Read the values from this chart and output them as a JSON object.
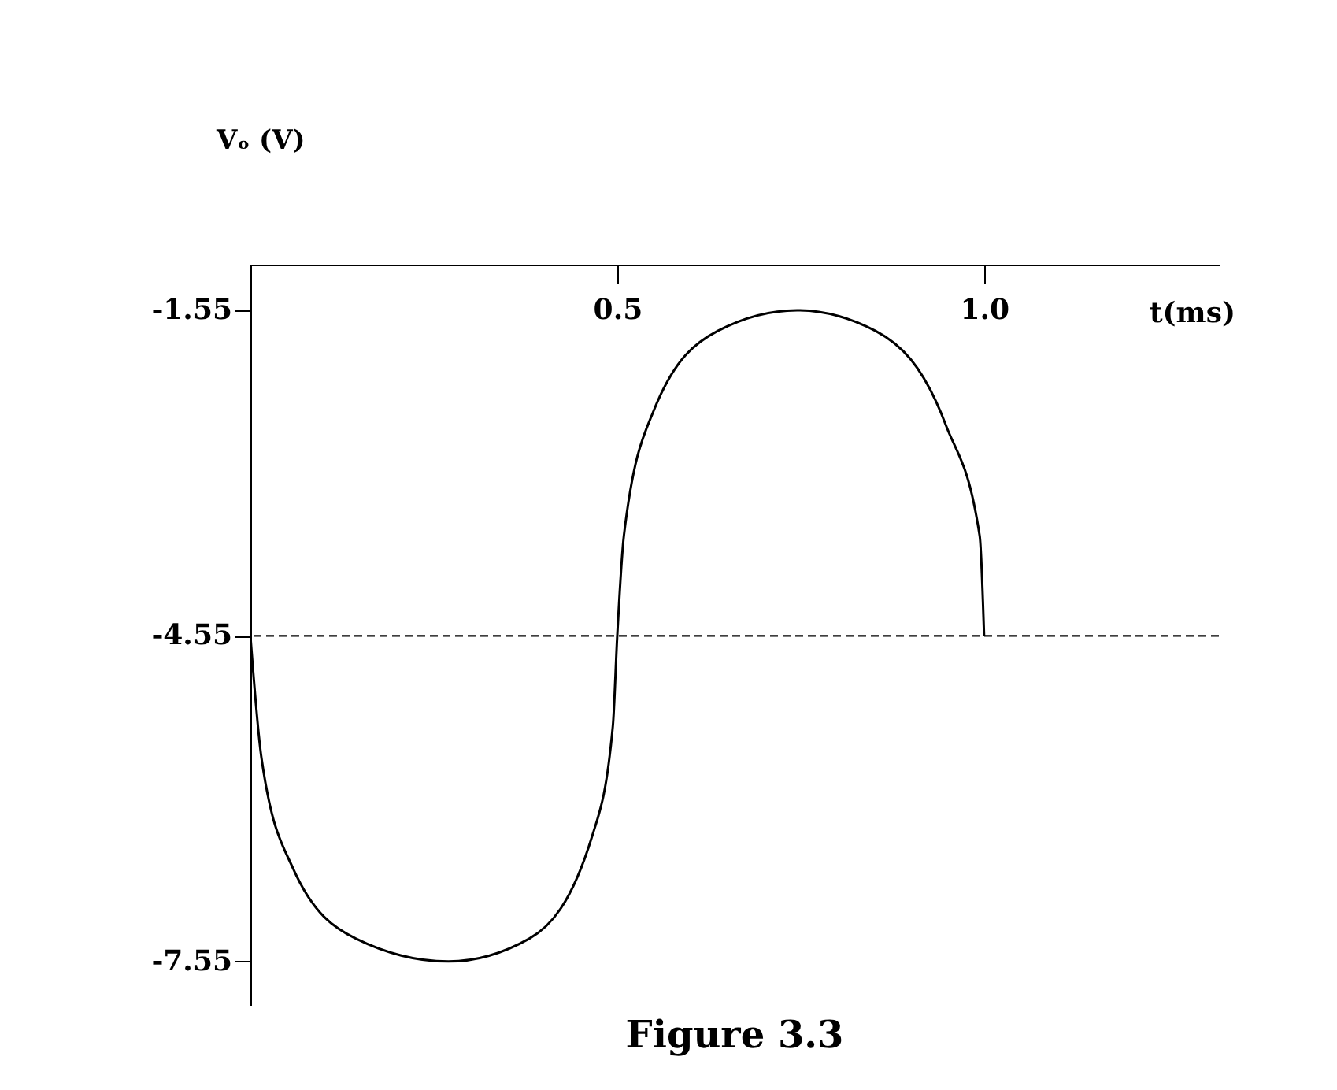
{
  "chart_data": {
    "type": "line",
    "xlabel": "t(ms)",
    "ylabel": "Vₒ (V)",
    "annotations": [
      "Figure 3.3"
    ],
    "xlim": [
      0,
      1.32
    ],
    "xticks": [
      {
        "value": 0.5,
        "label": "0.5"
      },
      {
        "value": 1,
        "label": "1.0"
      }
    ],
    "ylim": [
      -7.95,
      -1.13
    ],
    "yticks": [
      -1.55,
      -4.55,
      -7.55
    ],
    "grid": false,
    "marker": "none",
    "line_style": "solid",
    "series": [
      {
        "color": "#000000",
        "x": [
          0,
          0.015,
          0.058,
          0.144,
          0.27,
          0.38,
          0.466,
          0.494,
          0.5,
          0.509,
          0.55,
          0.637,
          0.745,
          0.852,
          0.948,
          0.994,
          1.0
        ],
        "values": [
          -4.55,
          -5.67,
          -6.69,
          -7.34,
          -7.55,
          -7.34,
          -6.39,
          -5.38,
          -4.55,
          -3.63,
          -2.47,
          -1.74,
          -1.55,
          -1.74,
          -2.61,
          -3.63,
          -4.55
        ]
      }
    ],
    "ref_lines": [
      {
        "axis": "y",
        "value": -4.55,
        "line_style": "dashed",
        "color": "#000000"
      }
    ]
  }
}
